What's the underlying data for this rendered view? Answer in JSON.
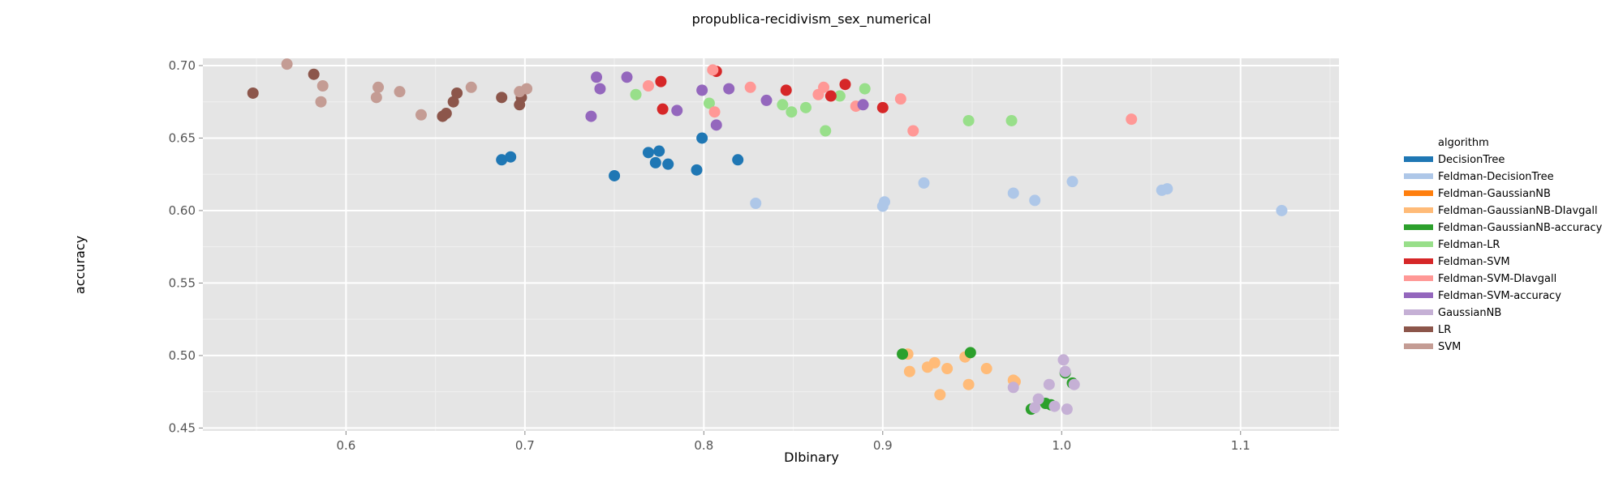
{
  "chart_data": {
    "type": "scatter",
    "title": "propublica-recidivism_sex_numerical",
    "xlabel": "DIbinary",
    "ylabel": "accuracy",
    "xlim": [
      0.52,
      1.155
    ],
    "ylim": [
      0.448,
      0.705
    ],
    "x_ticks": [
      0.6,
      0.7,
      0.8,
      0.9,
      1.0,
      1.1
    ],
    "x_tick_labels": [
      "0.6",
      "0.7",
      "0.8",
      "0.9",
      "1.0",
      "1.1"
    ],
    "y_ticks": [
      0.45,
      0.5,
      0.55,
      0.6,
      0.65,
      0.7
    ],
    "y_tick_labels": [
      "0.45",
      "0.50",
      "0.55",
      "0.60",
      "0.65",
      "0.70"
    ],
    "grid": true,
    "legend_title": "algorithm",
    "legend_position": "right",
    "series": [
      {
        "name": "DecisionTree",
        "color": "#1f77b4",
        "points": [
          [
            0.687,
            0.635
          ],
          [
            0.692,
            0.637
          ],
          [
            0.75,
            0.624
          ],
          [
            0.769,
            0.64
          ],
          [
            0.773,
            0.633
          ],
          [
            0.775,
            0.641
          ],
          [
            0.78,
            0.632
          ],
          [
            0.796,
            0.628
          ],
          [
            0.799,
            0.65
          ],
          [
            0.819,
            0.635
          ]
        ]
      },
      {
        "name": "Feldman-DecisionTree",
        "color": "#aec7e8",
        "points": [
          [
            0.829,
            0.605
          ],
          [
            0.9,
            0.603
          ],
          [
            0.901,
            0.606
          ],
          [
            0.923,
            0.619
          ],
          [
            0.973,
            0.612
          ],
          [
            0.985,
            0.607
          ],
          [
            1.006,
            0.62
          ],
          [
            1.056,
            0.614
          ],
          [
            1.059,
            0.615
          ],
          [
            1.123,
            0.6
          ]
        ]
      },
      {
        "name": "Feldman-GaussianNB",
        "color": "#ff7f0e",
        "points": []
      },
      {
        "name": "Feldman-GaussianNB-DIavgall",
        "color": "#ffbb78",
        "points": [
          [
            0.914,
            0.501
          ],
          [
            0.915,
            0.489
          ],
          [
            0.925,
            0.492
          ],
          [
            0.929,
            0.495
          ],
          [
            0.932,
            0.473
          ],
          [
            0.936,
            0.491
          ],
          [
            0.946,
            0.499
          ],
          [
            0.948,
            0.48
          ],
          [
            0.958,
            0.491
          ],
          [
            0.973,
            0.483
          ],
          [
            0.974,
            0.482
          ]
        ]
      },
      {
        "name": "Feldman-GaussianNB-accuracy",
        "color": "#2ca02c",
        "points": [
          [
            0.911,
            0.501
          ],
          [
            0.949,
            0.502
          ],
          [
            0.983,
            0.463
          ],
          [
            0.991,
            0.467
          ],
          [
            0.994,
            0.466
          ],
          [
            1.002,
            0.488
          ],
          [
            1.006,
            0.481
          ]
        ]
      },
      {
        "name": "Feldman-LR",
        "color": "#98df8a",
        "points": [
          [
            0.762,
            0.68
          ],
          [
            0.803,
            0.674
          ],
          [
            0.844,
            0.673
          ],
          [
            0.849,
            0.668
          ],
          [
            0.857,
            0.671
          ],
          [
            0.868,
            0.655
          ],
          [
            0.876,
            0.679
          ],
          [
            0.89,
            0.684
          ],
          [
            0.948,
            0.662
          ],
          [
            0.972,
            0.662
          ]
        ]
      },
      {
        "name": "Feldman-SVM",
        "color": "#d62728",
        "points": [
          [
            0.776,
            0.689
          ],
          [
            0.777,
            0.67
          ],
          [
            0.807,
            0.696
          ],
          [
            0.846,
            0.683
          ],
          [
            0.871,
            0.679
          ],
          [
            0.879,
            0.687
          ],
          [
            0.9,
            0.671
          ]
        ]
      },
      {
        "name": "Feldman-SVM-DIavgall",
        "color": "#ff9896",
        "points": [
          [
            0.769,
            0.686
          ],
          [
            0.805,
            0.697
          ],
          [
            0.806,
            0.668
          ],
          [
            0.826,
            0.685
          ],
          [
            0.864,
            0.68
          ],
          [
            0.867,
            0.685
          ],
          [
            0.885,
            0.672
          ],
          [
            0.91,
            0.677
          ],
          [
            0.917,
            0.655
          ],
          [
            1.039,
            0.663
          ]
        ]
      },
      {
        "name": "Feldman-SVM-accuracy",
        "color": "#9467bd",
        "points": [
          [
            0.737,
            0.665
          ],
          [
            0.74,
            0.692
          ],
          [
            0.742,
            0.684
          ],
          [
            0.757,
            0.692
          ],
          [
            0.785,
            0.669
          ],
          [
            0.799,
            0.683
          ],
          [
            0.807,
            0.659
          ],
          [
            0.814,
            0.684
          ],
          [
            0.835,
            0.676
          ],
          [
            0.889,
            0.673
          ]
        ]
      },
      {
        "name": "GaussianNB",
        "color": "#c5b0d5",
        "points": [
          [
            0.973,
            0.478
          ],
          [
            0.985,
            0.464
          ],
          [
            0.987,
            0.47
          ],
          [
            0.993,
            0.48
          ],
          [
            0.996,
            0.465
          ],
          [
            1.001,
            0.497
          ],
          [
            1.002,
            0.489
          ],
          [
            1.003,
            0.463
          ],
          [
            1.007,
            0.48
          ]
        ]
      },
      {
        "name": "LR",
        "color": "#8c564b",
        "points": [
          [
            0.548,
            0.681
          ],
          [
            0.582,
            0.694
          ],
          [
            0.654,
            0.665
          ],
          [
            0.656,
            0.667
          ],
          [
            0.66,
            0.675
          ],
          [
            0.662,
            0.681
          ],
          [
            0.687,
            0.678
          ],
          [
            0.697,
            0.673
          ],
          [
            0.698,
            0.678
          ]
        ]
      },
      {
        "name": "SVM",
        "color": "#c49c94",
        "points": [
          [
            0.567,
            0.701
          ],
          [
            0.586,
            0.675
          ],
          [
            0.587,
            0.686
          ],
          [
            0.617,
            0.678
          ],
          [
            0.618,
            0.685
          ],
          [
            0.63,
            0.682
          ],
          [
            0.642,
            0.666
          ],
          [
            0.67,
            0.685
          ],
          [
            0.697,
            0.682
          ],
          [
            0.701,
            0.684
          ]
        ]
      }
    ]
  }
}
